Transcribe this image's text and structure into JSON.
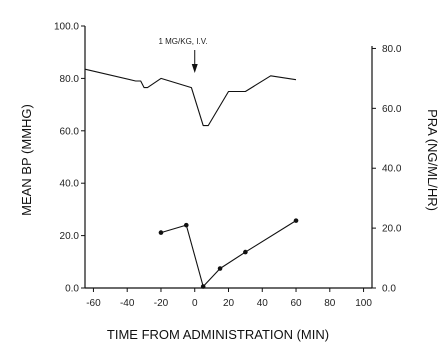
{
  "chart_data": {
    "type": "line",
    "annotation": "1 MG/KG, I.V.",
    "annotation_x": 0,
    "xlabel": "TIME FROM ADMINISTRATION (MIN)",
    "ylabel_left": "MEAN BP (MMHG)",
    "ylabel_right": "PRA (NG/ML/HR)",
    "xlim": [
      -65,
      105
    ],
    "ylim_left": [
      0,
      100
    ],
    "ylim_right": [
      0,
      87.5
    ],
    "x_ticks": [
      -60,
      -40,
      -20,
      0,
      20,
      40,
      60,
      80,
      100
    ],
    "x_tick_labels": [
      "-60",
      "-40",
      "-20",
      "0",
      "20",
      "40",
      "60",
      "80",
      "100"
    ],
    "y_left_ticks": [
      0,
      20,
      40,
      60,
      80,
      100
    ],
    "y_left_tick_labels": [
      "0.0",
      "20.0",
      "40.0",
      "60.0",
      "80.0",
      "100.0"
    ],
    "y_right_ticks": [
      0,
      20,
      40,
      60,
      80
    ],
    "y_right_tick_labels": [
      "0.0",
      "20.0",
      "40.0",
      "60.0",
      "80.0"
    ],
    "grid": false,
    "series": [
      {
        "axis": "left",
        "markers": false,
        "x": [
          -65,
          -35,
          -32,
          -30,
          -28,
          -20,
          -2,
          5,
          8,
          20,
          30,
          45,
          60
        ],
        "y": [
          83.5,
          79,
          79,
          76.5,
          76.5,
          80,
          76.5,
          62,
          62,
          75,
          75,
          81,
          79.5
        ]
      },
      {
        "axis": "right",
        "markers": true,
        "x": [
          -20,
          -5,
          5,
          15,
          30,
          60
        ],
        "y": [
          18.5,
          21,
          0.5,
          6.5,
          12,
          22.5
        ]
      }
    ]
  }
}
